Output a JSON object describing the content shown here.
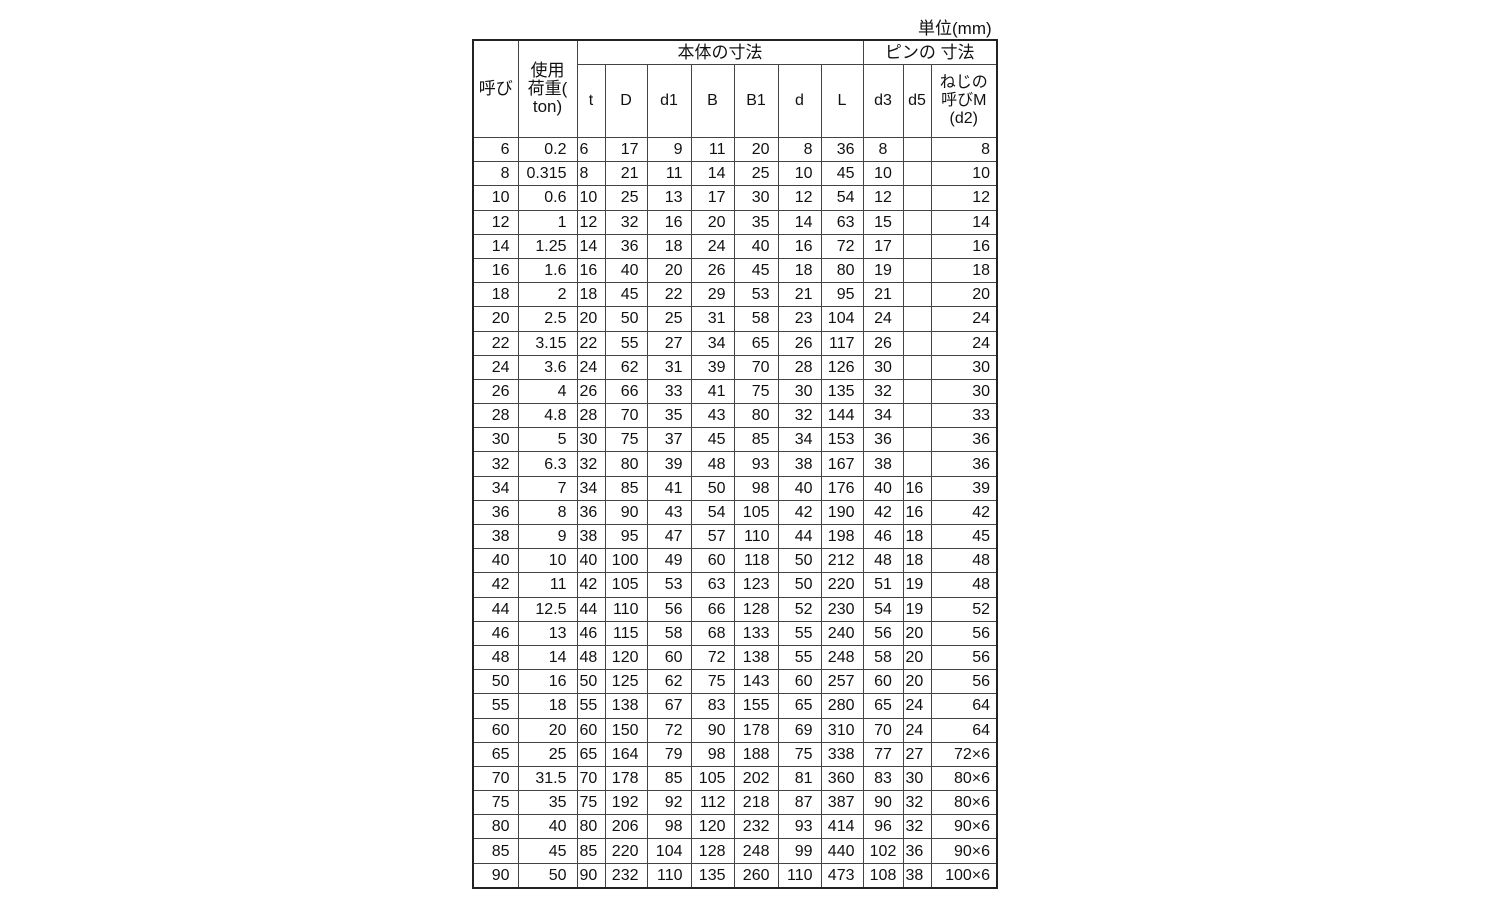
{
  "unit_label": "単位(mm)",
  "header": {
    "nominal": "呼び",
    "load": "使用荷重(ton)",
    "body_group": "本体の寸法",
    "pin_group": "ピンの 寸法",
    "columns": [
      "t",
      "D",
      "d1",
      "B",
      "B1",
      "d",
      "L",
      "d3",
      "d5",
      "ねじの呼びM(d2)"
    ]
  },
  "rows": [
    [
      "6",
      "0.2",
      "6",
      "17",
      "9",
      "11",
      "20",
      "8",
      "36",
      "8",
      "",
      "8"
    ],
    [
      "8",
      "0.315",
      "8",
      "21",
      "11",
      "14",
      "25",
      "10",
      "45",
      "10",
      "",
      "10"
    ],
    [
      "10",
      "0.6",
      "10",
      "25",
      "13",
      "17",
      "30",
      "12",
      "54",
      "12",
      "",
      "12"
    ],
    [
      "12",
      "1",
      "12",
      "32",
      "16",
      "20",
      "35",
      "14",
      "63",
      "15",
      "",
      "14"
    ],
    [
      "14",
      "1.25",
      "14",
      "36",
      "18",
      "24",
      "40",
      "16",
      "72",
      "17",
      "",
      "16"
    ],
    [
      "16",
      "1.6",
      "16",
      "40",
      "20",
      "26",
      "45",
      "18",
      "80",
      "19",
      "",
      "18"
    ],
    [
      "18",
      "2",
      "18",
      "45",
      "22",
      "29",
      "53",
      "21",
      "95",
      "21",
      "",
      "20"
    ],
    [
      "20",
      "2.5",
      "20",
      "50",
      "25",
      "31",
      "58",
      "23",
      "104",
      "24",
      "",
      "24"
    ],
    [
      "22",
      "3.15",
      "22",
      "55",
      "27",
      "34",
      "65",
      "26",
      "117",
      "26",
      "",
      "24"
    ],
    [
      "24",
      "3.6",
      "24",
      "62",
      "31",
      "39",
      "70",
      "28",
      "126",
      "30",
      "",
      "30"
    ],
    [
      "26",
      "4",
      "26",
      "66",
      "33",
      "41",
      "75",
      "30",
      "135",
      "32",
      "",
      "30"
    ],
    [
      "28",
      "4.8",
      "28",
      "70",
      "35",
      "43",
      "80",
      "32",
      "144",
      "34",
      "",
      "33"
    ],
    [
      "30",
      "5",
      "30",
      "75",
      "37",
      "45",
      "85",
      "34",
      "153",
      "36",
      "",
      "36"
    ],
    [
      "32",
      "6.3",
      "32",
      "80",
      "39",
      "48",
      "93",
      "38",
      "167",
      "38",
      "",
      "36"
    ],
    [
      "34",
      "7",
      "34",
      "85",
      "41",
      "50",
      "98",
      "40",
      "176",
      "40",
      "16",
      "39"
    ],
    [
      "36",
      "8",
      "36",
      "90",
      "43",
      "54",
      "105",
      "42",
      "190",
      "42",
      "16",
      "42"
    ],
    [
      "38",
      "9",
      "38",
      "95",
      "47",
      "57",
      "110",
      "44",
      "198",
      "46",
      "18",
      "45"
    ],
    [
      "40",
      "10",
      "40",
      "100",
      "49",
      "60",
      "118",
      "50",
      "212",
      "48",
      "18",
      "48"
    ],
    [
      "42",
      "11",
      "42",
      "105",
      "53",
      "63",
      "123",
      "50",
      "220",
      "51",
      "19",
      "48"
    ],
    [
      "44",
      "12.5",
      "44",
      "110",
      "56",
      "66",
      "128",
      "52",
      "230",
      "54",
      "19",
      "52"
    ],
    [
      "46",
      "13",
      "46",
      "115",
      "58",
      "68",
      "133",
      "55",
      "240",
      "56",
      "20",
      "56"
    ],
    [
      "48",
      "14",
      "48",
      "120",
      "60",
      "72",
      "138",
      "55",
      "248",
      "58",
      "20",
      "56"
    ],
    [
      "50",
      "16",
      "50",
      "125",
      "62",
      "75",
      "143",
      "60",
      "257",
      "60",
      "20",
      "56"
    ],
    [
      "55",
      "18",
      "55",
      "138",
      "67",
      "83",
      "155",
      "65",
      "280",
      "65",
      "24",
      "64"
    ],
    [
      "60",
      "20",
      "60",
      "150",
      "72",
      "90",
      "178",
      "69",
      "310",
      "70",
      "24",
      "64"
    ],
    [
      "65",
      "25",
      "65",
      "164",
      "79",
      "98",
      "188",
      "75",
      "338",
      "77",
      "27",
      "72×6"
    ],
    [
      "70",
      "31.5",
      "70",
      "178",
      "85",
      "105",
      "202",
      "81",
      "360",
      "83",
      "30",
      "80×6"
    ],
    [
      "75",
      "35",
      "75",
      "192",
      "92",
      "112",
      "218",
      "87",
      "387",
      "90",
      "32",
      "80×6"
    ],
    [
      "80",
      "40",
      "80",
      "206",
      "98",
      "120",
      "232",
      "93",
      "414",
      "96",
      "32",
      "90×6"
    ],
    [
      "85",
      "45",
      "85",
      "220",
      "104",
      "128",
      "248",
      "99",
      "440",
      "102",
      "36",
      "90×6"
    ],
    [
      "90",
      "50",
      "90",
      "232",
      "110",
      "135",
      "260",
      "110",
      "473",
      "108",
      "38",
      "100×6"
    ]
  ]
}
